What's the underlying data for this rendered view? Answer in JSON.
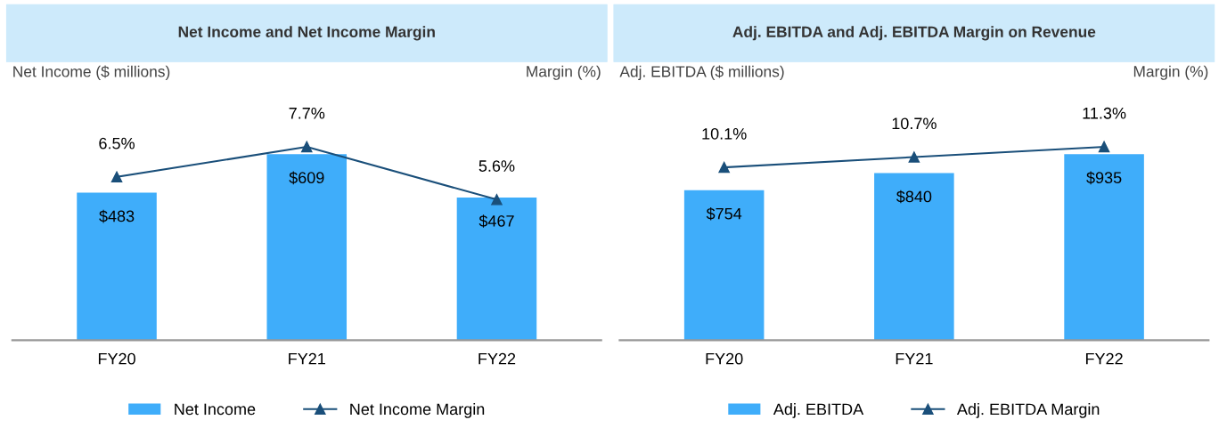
{
  "chart_data": [
    {
      "type": "bar",
      "title": "Net Income and Net Income Margin",
      "ylabel": "Net Income ($ millions)",
      "y2label": "Margin (%)",
      "categories": [
        "FY20",
        "FY21",
        "FY22"
      ],
      "tick_labels": "x",
      "grid": false,
      "legend": "bottom",
      "series": [
        {
          "name": "Net Income",
          "color": "#3fadfa",
          "values": [
            483,
            609,
            467
          ],
          "value_labels": [
            "$483",
            "$609",
            "$467"
          ]
        },
        {
          "name": "Net Income Margin",
          "type": "line",
          "axis": "y2",
          "color": "#1a4f7a",
          "marker": "triangle",
          "values": [
            6.5,
            7.7,
            5.6
          ],
          "value_labels": [
            "6.5%",
            "7.7%",
            "5.6%"
          ]
        }
      ]
    },
    {
      "type": "bar",
      "title": "Adj. EBITDA and Adj. EBITDA Margin on Revenue",
      "ylabel": "Adj. EBITDA ($ millions)",
      "y2label": "Margin (%)",
      "categories": [
        "FY20",
        "FY21",
        "FY22"
      ],
      "tick_labels": "x",
      "grid": false,
      "legend": "bottom",
      "series": [
        {
          "name": "Adj. EBITDA",
          "color": "#3fadfa",
          "values": [
            754,
            840,
            935
          ],
          "value_labels": [
            "$754",
            "$840",
            "$935"
          ]
        },
        {
          "name": "Adj. EBITDA Margin",
          "type": "line",
          "axis": "y2",
          "color": "#1a4f7a",
          "marker": "triangle",
          "values": [
            10.1,
            10.7,
            11.3
          ],
          "value_labels": [
            "10.1%",
            "10.7%",
            "11.3%"
          ]
        }
      ]
    }
  ]
}
